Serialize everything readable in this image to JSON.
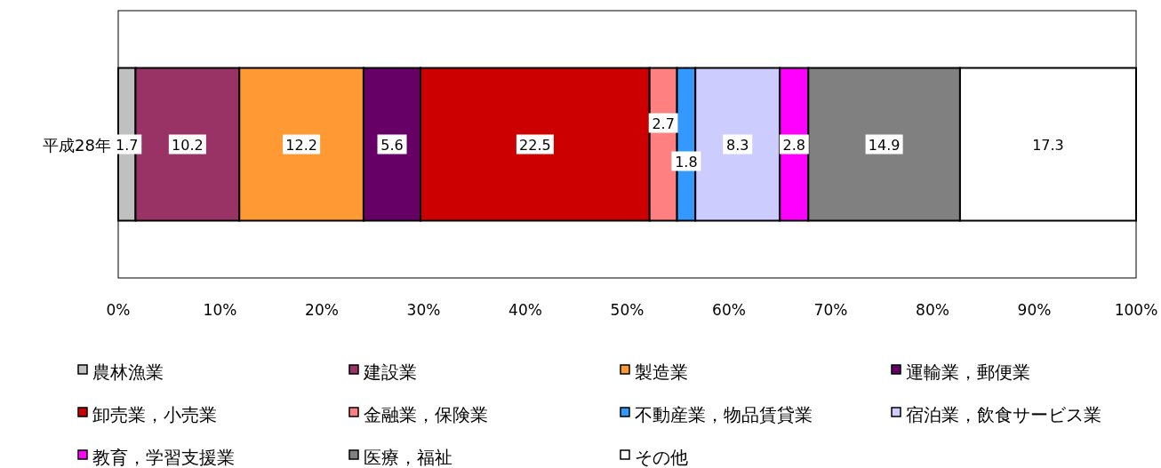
{
  "chart_data": {
    "type": "bar",
    "orientation": "horizontal",
    "stacked": true,
    "categories": [
      "平成28年"
    ],
    "xlim": [
      0,
      100
    ],
    "xticks": [
      {
        "value": 0,
        "label": "0%"
      },
      {
        "value": 10,
        "label": "10%"
      },
      {
        "value": 20,
        "label": "20%"
      },
      {
        "value": 30,
        "label": "30%"
      },
      {
        "value": 40,
        "label": "40%"
      },
      {
        "value": 50,
        "label": "50%"
      },
      {
        "value": 60,
        "label": "60%"
      },
      {
        "value": 70,
        "label": "70%"
      },
      {
        "value": 80,
        "label": "80%"
      },
      {
        "value": 90,
        "label": "90%"
      },
      {
        "value": 100,
        "label": "100%"
      }
    ],
    "data_labels": true,
    "legend": "bottom",
    "grid": false,
    "series": [
      {
        "name": "農林漁業",
        "color": "#c0c0c0",
        "values": [
          1.7
        ]
      },
      {
        "name": "建設業",
        "color": "#993366",
        "values": [
          10.2
        ]
      },
      {
        "name": "製造業",
        "color": "#ff9933",
        "values": [
          12.2
        ]
      },
      {
        "name": "運輸業，郵便業",
        "color": "#660066",
        "values": [
          5.6
        ]
      },
      {
        "name": "卸売業，小売業",
        "color": "#cc0000",
        "values": [
          22.5
        ]
      },
      {
        "name": "金融業，保険業",
        "color": "#ff8080",
        "values": [
          2.7
        ]
      },
      {
        "name": "不動産業，物品賃貸業",
        "color": "#3399ff",
        "values": [
          1.8
        ]
      },
      {
        "name": "宿泊業，飲食サービス業",
        "color": "#ccccff",
        "values": [
          8.3
        ]
      },
      {
        "name": "教育，学習支援業",
        "color": "#ff00ff",
        "values": [
          2.8
        ]
      },
      {
        "name": "医療，福祉",
        "color": "#808080",
        "values": [
          14.9
        ]
      },
      {
        "name": "その他",
        "color": "#ffffff",
        "values": [
          17.3
        ]
      }
    ]
  }
}
